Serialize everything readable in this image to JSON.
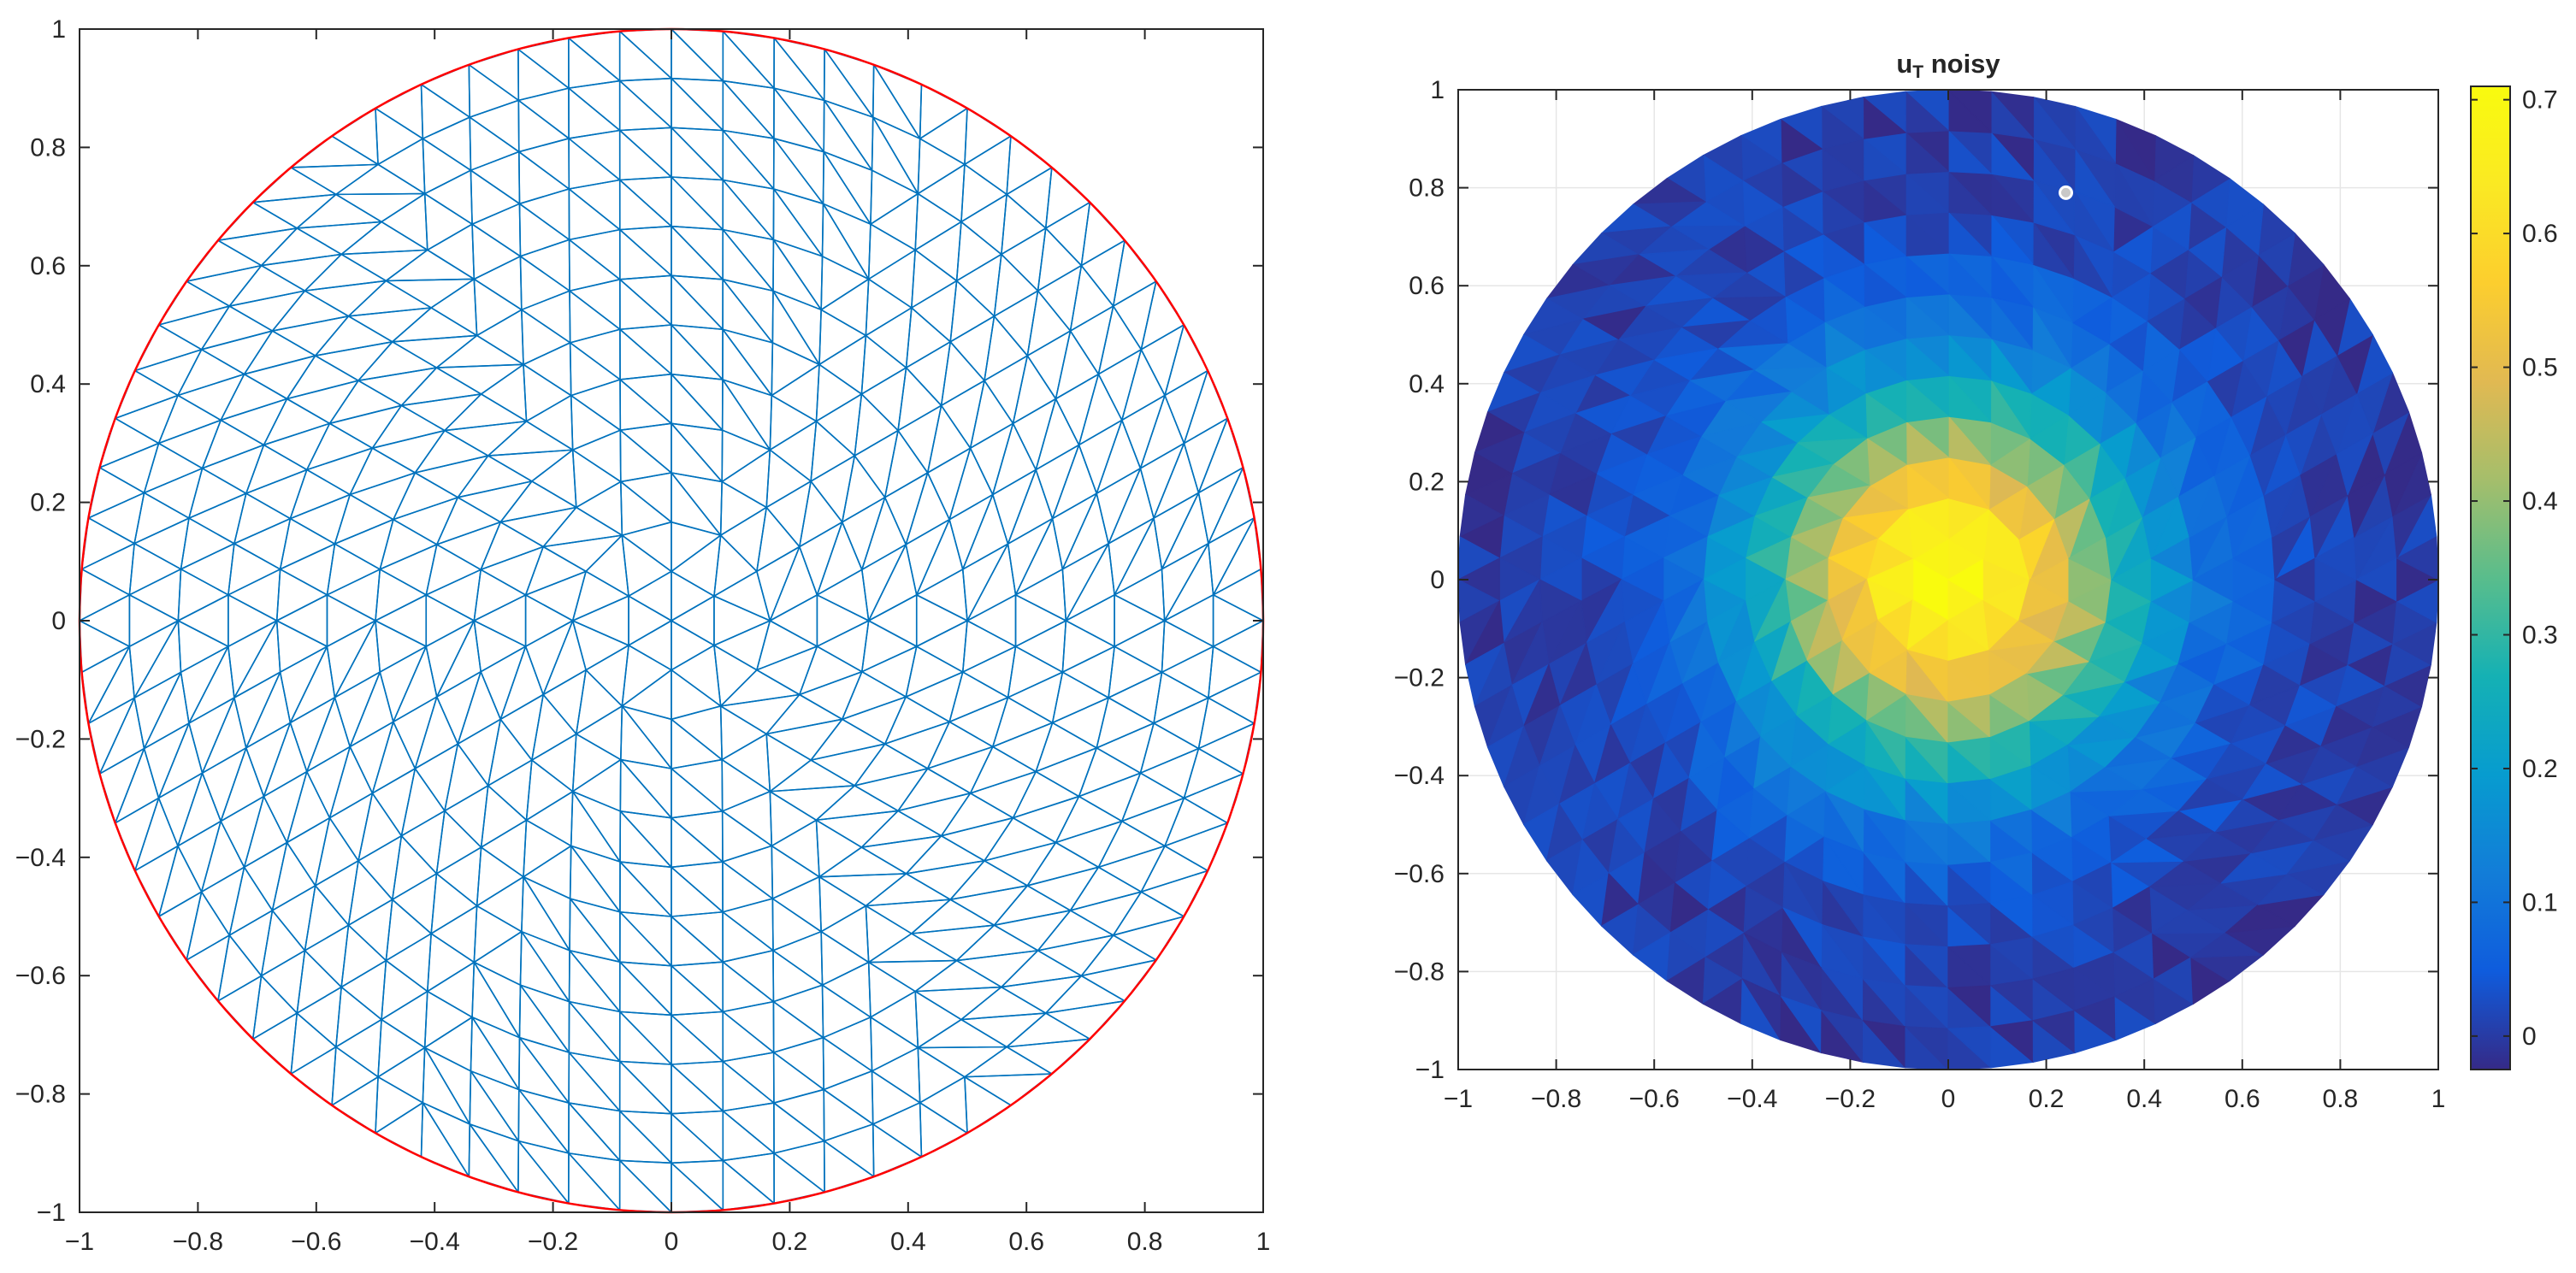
{
  "chart_data": [
    {
      "type": "mesh",
      "title": "",
      "xlabel": "",
      "ylabel": "",
      "xlim": [
        -1,
        1
      ],
      "ylim": [
        -1,
        1
      ],
      "xticks": [
        "-1",
        "-0.8",
        "-0.6",
        "-0.4",
        "-0.2",
        "0",
        "0.2",
        "0.4",
        "0.6",
        "0.8",
        "1"
      ],
      "yticks": [
        "-1",
        "-0.8",
        "-0.6",
        "-0.4",
        "-0.2",
        "0",
        "0.2",
        "0.4",
        "0.6",
        "0.8",
        "1"
      ],
      "grid": false,
      "domain": {
        "shape": "circle",
        "center": [
          0,
          0
        ],
        "radius": 1
      },
      "mesh_rings": 12,
      "colors": {
        "edges": "#0072BD",
        "boundary": "#FF0000"
      }
    },
    {
      "type": "heatmap",
      "title_main": "u",
      "title_sub": "T",
      "title_rest": " noisy",
      "xlabel": "",
      "ylabel": "",
      "xlim": [
        -1,
        1
      ],
      "ylim": [
        -1,
        1
      ],
      "xticks": [
        "-1",
        "-0.8",
        "-0.6",
        "-0.4",
        "-0.2",
        "0",
        "0.2",
        "0.4",
        "0.6",
        "0.8",
        "1"
      ],
      "yticks": [
        "-1",
        "-0.8",
        "-0.6",
        "-0.4",
        "-0.2",
        "0",
        "0.2",
        "0.4",
        "0.6",
        "0.8",
        "1"
      ],
      "grid": true,
      "domain": {
        "shape": "circle",
        "center": [
          0,
          0
        ],
        "radius": 1
      },
      "field": {
        "peak": 0.71,
        "center": [
          0,
          0
        ],
        "width": 0.27,
        "noise_amplitude": 0.03
      },
      "colorbar": {
        "colormap": "parula",
        "range": [
          -0.025,
          0.71
        ],
        "ticks": [
          0,
          0.1,
          0.2,
          0.3,
          0.4,
          0.5,
          0.6,
          0.7
        ],
        "tick_labels": [
          "0",
          "0.1",
          "0.2",
          "0.3",
          "0.4",
          "0.5",
          "0.6",
          "0.7"
        ],
        "placement": "right"
      },
      "marker": {
        "x": 0.24,
        "y": 0.79
      }
    }
  ]
}
